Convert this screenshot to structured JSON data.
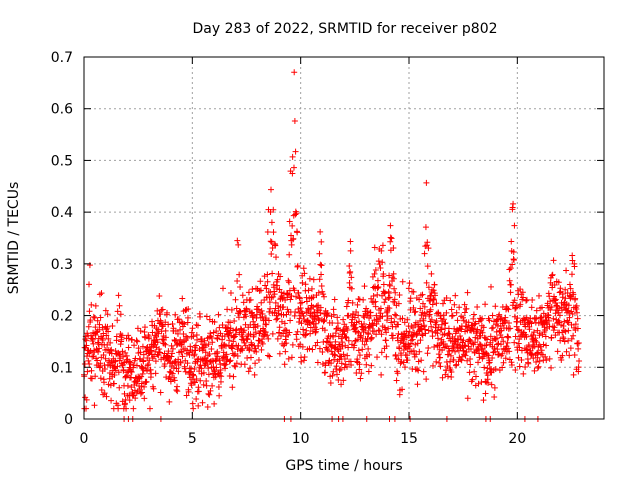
{
  "chart_data": {
    "type": "scatter",
    "title": "Day 283 of 2022, SRMTID for receiver p802",
    "xlabel": "GPS time / hours",
    "ylabel": "SRMTID / TECUs",
    "xlim": [
      0,
      24
    ],
    "ylim": [
      0,
      0.7
    ],
    "xticks": [
      0,
      5,
      10,
      15,
      20
    ],
    "xtick_labels": [
      "0",
      "5",
      "10",
      "15",
      "20"
    ],
    "yticks": [
      0,
      0.1,
      0.2,
      0.3,
      0.4,
      0.5,
      0.6,
      0.7
    ],
    "ytick_labels": [
      "0",
      "0.1",
      "0.2",
      "0.3",
      "0.4",
      "0.5",
      "0.6",
      "0.7"
    ],
    "grid": true,
    "marker": "plus",
    "color": "#ff0000",
    "x_end": 22.85,
    "series": [
      {
        "name": "SRMTID p802",
        "trend": [
          [
            0.0,
            0.08
          ],
          [
            0.5,
            0.13
          ],
          [
            1.0,
            0.13
          ],
          [
            1.5,
            0.08
          ],
          [
            2.0,
            0.09
          ],
          [
            2.5,
            0.08
          ],
          [
            3.0,
            0.12
          ],
          [
            3.5,
            0.14
          ],
          [
            4.0,
            0.12
          ],
          [
            4.5,
            0.14
          ],
          [
            5.0,
            0.12
          ],
          [
            5.5,
            0.11
          ],
          [
            6.0,
            0.12
          ],
          [
            6.5,
            0.14
          ],
          [
            7.0,
            0.15
          ],
          [
            7.5,
            0.17
          ],
          [
            8.0,
            0.18
          ],
          [
            8.5,
            0.19
          ],
          [
            9.0,
            0.19
          ],
          [
            9.5,
            0.19
          ],
          [
            10.0,
            0.19
          ],
          [
            10.5,
            0.2
          ],
          [
            11.0,
            0.16
          ],
          [
            11.5,
            0.14
          ],
          [
            12.0,
            0.15
          ],
          [
            12.5,
            0.16
          ],
          [
            13.0,
            0.16
          ],
          [
            13.5,
            0.18
          ],
          [
            14.0,
            0.2
          ],
          [
            14.5,
            0.15
          ],
          [
            15.0,
            0.16
          ],
          [
            15.5,
            0.17
          ],
          [
            16.0,
            0.16
          ],
          [
            16.5,
            0.16
          ],
          [
            17.0,
            0.15
          ],
          [
            17.5,
            0.15
          ],
          [
            18.0,
            0.14
          ],
          [
            18.5,
            0.13
          ],
          [
            19.0,
            0.14
          ],
          [
            19.5,
            0.17
          ],
          [
            20.0,
            0.19
          ],
          [
            20.5,
            0.16
          ],
          [
            21.0,
            0.15
          ],
          [
            21.5,
            0.19
          ],
          [
            22.0,
            0.2
          ],
          [
            22.5,
            0.19
          ],
          [
            22.85,
            0.14
          ]
        ],
        "bursts": [
          [
            0.25,
            0.3
          ],
          [
            1.6,
            0.26
          ],
          [
            3.5,
            0.24
          ],
          [
            7.1,
            0.35
          ],
          [
            8.6,
            0.51
          ],
          [
            8.75,
            0.51
          ],
          [
            9.55,
            0.52
          ],
          [
            9.7,
            0.67
          ],
          [
            10.9,
            0.37
          ],
          [
            12.3,
            0.33
          ],
          [
            13.4,
            0.38
          ],
          [
            13.7,
            0.4
          ],
          [
            14.2,
            0.42
          ],
          [
            15.8,
            0.48
          ],
          [
            16.1,
            0.33
          ],
          [
            19.8,
            0.45
          ],
          [
            21.6,
            0.34
          ],
          [
            22.55,
            0.35
          ]
        ],
        "zero_points": [
          1.85,
          2.05,
          2.25,
          3.55,
          9.25,
          9.55,
          11.45,
          11.75,
          11.95,
          13.05,
          14.1,
          14.35,
          15.05,
          16.75,
          18.55,
          18.75,
          20.35,
          20.95
        ]
      }
    ]
  }
}
